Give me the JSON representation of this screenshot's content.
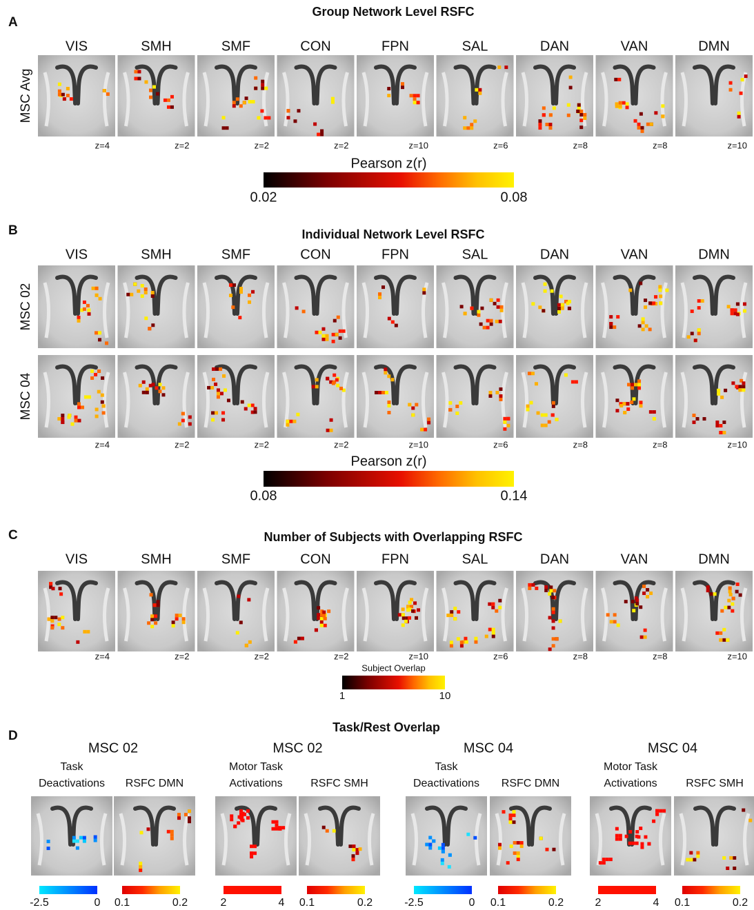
{
  "panel_a": {
    "label": "A",
    "title": "Group Network Level RSFC",
    "columns": [
      "VIS",
      "SMH",
      "SMF",
      "CON",
      "FPN",
      "SAL",
      "DAN",
      "VAN",
      "DMN"
    ],
    "rows": [
      "MSC Avg"
    ],
    "z_labels": [
      "z=4",
      "z=2",
      "z=2",
      "z=2",
      "z=10",
      "z=6",
      "z=8",
      "z=8",
      "z=10"
    ],
    "colorbar": {
      "title": "Pearson z(r)",
      "min": "0.02",
      "max": "0.08"
    }
  },
  "panel_b": {
    "label": "B",
    "title": "Individual Network Level RSFC",
    "columns": [
      "VIS",
      "SMH",
      "SMF",
      "CON",
      "FPN",
      "SAL",
      "DAN",
      "VAN",
      "DMN"
    ],
    "rows": [
      "MSC 02",
      "MSC 04"
    ],
    "z_labels": [
      "z=4",
      "z=2",
      "z=2",
      "z=2",
      "z=10",
      "z=6",
      "z=8",
      "z=8",
      "z=10"
    ],
    "colorbar": {
      "title": "Pearson z(r)",
      "min": "0.08",
      "max": "0.14"
    }
  },
  "panel_c": {
    "label": "C",
    "title": "Number of Subjects with Overlapping RSFC",
    "columns": [
      "VIS",
      "SMH",
      "SMF",
      "CON",
      "FPN",
      "SAL",
      "DAN",
      "VAN",
      "DMN"
    ],
    "z_labels": [
      "z=4",
      "z=2",
      "z=2",
      "z=2",
      "z=10",
      "z=6",
      "z=8",
      "z=8",
      "z=10"
    ],
    "colorbar": {
      "title": "Subject Overlap",
      "min": "1",
      "max": "10"
    }
  },
  "panel_d": {
    "label": "D",
    "title": "Task/Rest Overlap",
    "groups": [
      {
        "subject": "MSC 02",
        "images": [
          {
            "caption": [
              "Task",
              "Deactivations"
            ],
            "colorbar": {
              "min": "-2.5",
              "max": "0"
            }
          },
          {
            "caption": [
              "RSFC DMN"
            ],
            "colorbar": {
              "min": "0.1",
              "max": "0.2"
            }
          }
        ]
      },
      {
        "subject": "MSC 02",
        "images": [
          {
            "caption": [
              "Motor Task",
              "Activations"
            ],
            "colorbar": {
              "min": "2",
              "max": "4"
            }
          },
          {
            "caption": [
              "RSFC SMH"
            ],
            "colorbar": {
              "min": "0.1",
              "max": "0.2"
            }
          }
        ]
      },
      {
        "subject": "MSC 04",
        "images": [
          {
            "caption": [
              "Task",
              "Deactivations"
            ],
            "colorbar": {
              "min": "-2.5",
              "max": "0"
            }
          },
          {
            "caption": [
              "RSFC DMN"
            ],
            "colorbar": {
              "min": "0.1",
              "max": "0.2"
            }
          }
        ]
      },
      {
        "subject": "MSC 04",
        "images": [
          {
            "caption": [
              "Motor Task",
              "Activations"
            ],
            "colorbar": {
              "min": "2",
              "max": "4"
            }
          },
          {
            "caption": [
              "RSFC SMH"
            ],
            "colorbar": {
              "min": "0.1",
              "max": "0.2"
            }
          }
        ]
      }
    ]
  }
}
